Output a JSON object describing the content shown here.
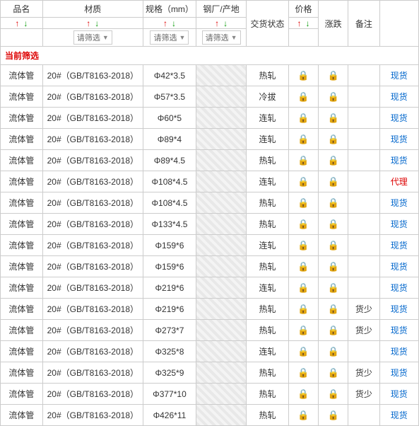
{
  "headers": {
    "name": "品名",
    "material": "材质",
    "spec": "规格（mm）",
    "factory": "钢厂/产地",
    "delivery": "交货状态",
    "price": "价格",
    "change": "涨跌",
    "remark": "备注"
  },
  "filter_placeholder": "请筛选",
  "current_filter_label": "当前筛选",
  "stock_label": "现货",
  "agent_label": "代理",
  "colors": {
    "up_arrow": "#d00",
    "down_arrow": "#090",
    "lock": "#d33",
    "link": "#06c",
    "agent": "#d00",
    "border": "#cccccc",
    "filter_label": "#d00"
  },
  "rows": [
    {
      "name": "流体管",
      "material": "20#（GB/T8163-2018）",
      "spec": "Φ42*3.5",
      "delivery": "热轧",
      "price_locked": true,
      "change_locked": true,
      "remark": "",
      "status": "stock"
    },
    {
      "name": "流体管",
      "material": "20#（GB/T8163-2018）",
      "spec": "Φ57*3.5",
      "delivery": "冷拔",
      "price_locked": true,
      "change_locked": true,
      "remark": "",
      "status": "stock"
    },
    {
      "name": "流体管",
      "material": "20#（GB/T8163-2018）",
      "spec": "Φ60*5",
      "delivery": "连轧",
      "price_locked": true,
      "change_locked": true,
      "remark": "",
      "status": "stock"
    },
    {
      "name": "流体管",
      "material": "20#（GB/T8163-2018）",
      "spec": "Φ89*4",
      "delivery": "连轧",
      "price_locked": true,
      "change_locked": true,
      "remark": "",
      "status": "stock"
    },
    {
      "name": "流体管",
      "material": "20#（GB/T8163-2018）",
      "spec": "Φ89*4.5",
      "delivery": "热轧",
      "price_locked": true,
      "change_locked": true,
      "remark": "",
      "status": "stock"
    },
    {
      "name": "流体管",
      "material": "20#（GB/T8163-2018）",
      "spec": "Φ108*4.5",
      "delivery": "连轧",
      "price_locked": true,
      "change_locked": true,
      "remark": "",
      "status": "agent"
    },
    {
      "name": "流体管",
      "material": "20#（GB/T8163-2018）",
      "spec": "Φ108*4.5",
      "delivery": "热轧",
      "price_locked": true,
      "change_locked": true,
      "remark": "",
      "status": "stock"
    },
    {
      "name": "流体管",
      "material": "20#（GB/T8163-2018）",
      "spec": "Φ133*4.5",
      "delivery": "热轧",
      "price_locked": true,
      "change_locked": true,
      "remark": "",
      "status": "stock"
    },
    {
      "name": "流体管",
      "material": "20#（GB/T8163-2018）",
      "spec": "Φ159*6",
      "delivery": "连轧",
      "price_locked": true,
      "change_locked": true,
      "remark": "",
      "status": "stock"
    },
    {
      "name": "流体管",
      "material": "20#（GB/T8163-2018）",
      "spec": "Φ159*6",
      "delivery": "热轧",
      "price_locked": true,
      "change_locked": true,
      "remark": "",
      "status": "stock"
    },
    {
      "name": "流体管",
      "material": "20#（GB/T8163-2018）",
      "spec": "Φ219*6",
      "delivery": "连轧",
      "price_locked": true,
      "change_locked": true,
      "remark": "",
      "status": "stock"
    },
    {
      "name": "流体管",
      "material": "20#（GB/T8163-2018）",
      "spec": "Φ219*6",
      "delivery": "热轧",
      "price_locked": true,
      "change_locked": true,
      "remark": "货少",
      "status": "stock"
    },
    {
      "name": "流体管",
      "material": "20#（GB/T8163-2018）",
      "spec": "Φ273*7",
      "delivery": "热轧",
      "price_locked": true,
      "change_locked": true,
      "remark": "货少",
      "status": "stock"
    },
    {
      "name": "流体管",
      "material": "20#（GB/T8163-2018）",
      "spec": "Φ325*8",
      "delivery": "连轧",
      "price_locked": true,
      "change_locked": true,
      "remark": "",
      "status": "stock"
    },
    {
      "name": "流体管",
      "material": "20#（GB/T8163-2018）",
      "spec": "Φ325*9",
      "delivery": "热轧",
      "price_locked": true,
      "change_locked": true,
      "remark": "货少",
      "status": "stock"
    },
    {
      "name": "流体管",
      "material": "20#（GB/T8163-2018）",
      "spec": "Φ377*10",
      "delivery": "热轧",
      "price_locked": true,
      "change_locked": true,
      "remark": "货少",
      "status": "stock"
    },
    {
      "name": "流体管",
      "material": "20#（GB/T8163-2018）",
      "spec": "Φ426*11",
      "delivery": "热轧",
      "price_locked": true,
      "change_locked": true,
      "remark": "",
      "status": "stock"
    }
  ]
}
